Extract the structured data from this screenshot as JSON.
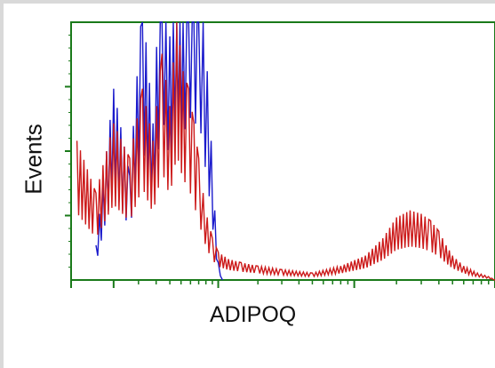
{
  "chart_data": {
    "type": "histogram",
    "xlabel": "ADIPOQ",
    "ylabel": "Events",
    "xscale": "log",
    "xlim": [
      0,
      1000
    ],
    "ylim": [
      0,
      100
    ],
    "grid": false,
    "legend": "none",
    "frame_color": "#1a7a1a",
    "series": [
      {
        "color": "#1a1acc",
        "x": [
          0.5,
          1.0,
          1.6,
          2.2,
          2.8,
          3.4,
          4.0,
          4.6,
          5.2,
          5.8,
          6.4,
          7.0,
          7.6,
          8.2,
          8.8,
          9.4,
          10.0,
          10.8
        ],
        "y": [
          10,
          55,
          30,
          80,
          45,
          100,
          70,
          100,
          85,
          100,
          90,
          100,
          75,
          60,
          40,
          20,
          5,
          0
        ]
      },
      {
        "color": "#cc1a1a",
        "x": [
          0.1,
          0.5,
          1.0,
          1.6,
          2.2,
          2.8,
          3.4,
          4.0,
          4.6,
          5.2,
          5.8,
          6.4,
          7.0,
          7.6,
          8.2,
          9.0,
          10.0,
          12.0,
          15.0,
          20.0,
          30.0,
          50.0,
          80.0,
          120.0,
          160.0,
          200.0,
          250.0,
          300.0,
          350.0,
          400.0,
          450.0,
          500.0,
          600.0,
          750.0,
          900.0,
          1000.0
        ],
        "y": [
          40,
          25,
          45,
          35,
          55,
          40,
          65,
          50,
          75,
          60,
          55,
          45,
          35,
          25,
          18,
          12,
          8,
          6,
          5,
          4,
          3,
          2,
          4,
          7,
          12,
          18,
          20,
          19,
          17,
          14,
          10,
          7,
          4,
          2,
          1,
          0
        ]
      }
    ]
  }
}
